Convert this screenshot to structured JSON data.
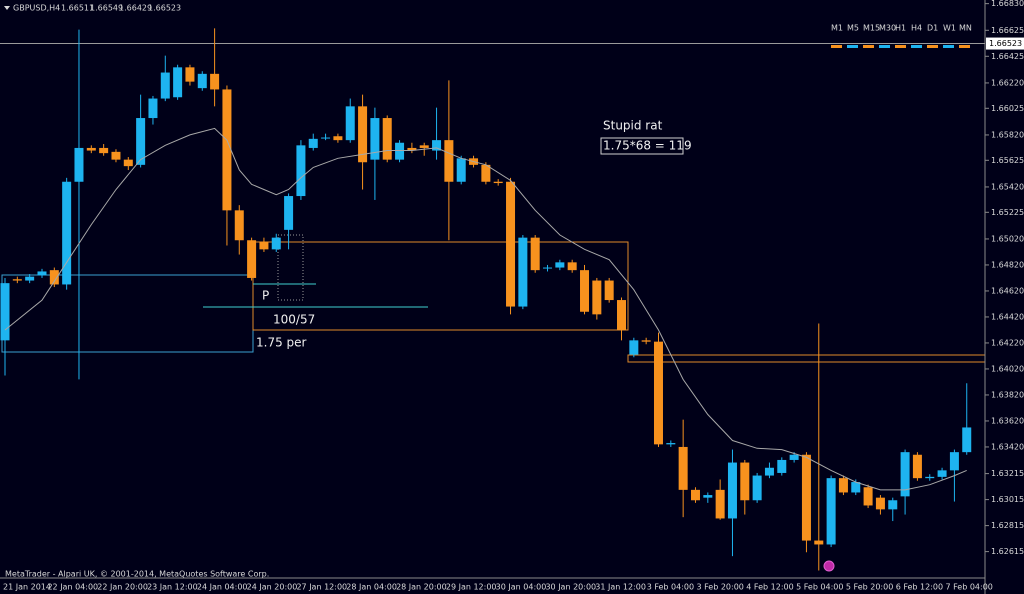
{
  "chart_data": {
    "type": "candlestick",
    "header": {
      "symbol": "GBPUSD,H4",
      "values": [
        1.66511,
        1.66549,
        1.66429,
        1.66523
      ]
    },
    "timeframes": [
      "M1",
      "M5",
      "M15",
      "M30",
      "H1",
      "H4",
      "D1",
      "W1",
      "MN"
    ],
    "footer": "MetaTrader - Alpari UK, © 2001-2014, MetaQuotes Software Corp.",
    "annotations": [
      "Stupid rat",
      "1.75*68 = 119",
      "P",
      "100/57",
      "1.75 per"
    ],
    "current_price": 1.66523,
    "ylim": [
      1.62412,
      1.66858
    ],
    "yticks": [
      {
        "value": 1.6683,
        "label": "1.66830"
      },
      1.66625,
      1.66425,
      {
        "value": 1.6622,
        "label": "1.66220"
      },
      1.66025,
      {
        "value": 1.6582,
        "label": "1.65820"
      },
      1.65625,
      {
        "value": 1.6542,
        "label": "1.65420"
      },
      1.65225,
      {
        "value": 1.6502,
        "label": "1.65020"
      },
      {
        "value": 1.6482,
        "label": "1.64820"
      },
      {
        "value": 1.6462,
        "label": "1.64620"
      },
      {
        "value": 1.6442,
        "label": "1.64420"
      },
      {
        "value": 1.6422,
        "label": "1.64220"
      },
      {
        "value": 1.6402,
        "label": "1.64020"
      },
      {
        "value": 1.6382,
        "label": "1.63820"
      },
      {
        "value": 1.6362,
        "label": "1.63620"
      },
      {
        "value": 1.6342,
        "label": "1.63420"
      },
      1.63215,
      1.63015,
      1.62815,
      1.62615
    ],
    "x_labels": [
      "21 Jan 2014",
      "22 Jan 04:00",
      "22 Jan 20:00",
      "23 Jan 12:00",
      "24 Jan 04:00",
      "24 Jan 20:00",
      "27 Jan 12:00",
      "28 Jan 04:00",
      "28 Jan 20:00",
      "29 Jan 12:00",
      "30 Jan 04:00",
      "30 Jan 20:00",
      "31 Jan 12:00",
      "3 Feb 04:00",
      "3 Feb 20:00",
      "4 Feb 12:00",
      "5 Feb 04:00",
      "5 Feb 20:00",
      "6 Feb 12:00",
      "7 Feb 04:00"
    ],
    "bull_color": "#1eb4f0",
    "bear_color": "#f7921e",
    "open": [
      1.6424,
      1.6471,
      1.647,
      1.6474,
      1.6478,
      1.6467,
      1.6546,
      1.6572,
      1.6572,
      1.6569,
      1.6563,
      1.6559,
      1.6595,
      1.661,
      1.6611,
      1.6634,
      1.6618,
      1.6629,
      1.6617,
      1.6524,
      1.6501,
      1.65,
      1.6494,
      1.6509,
      1.6535,
      1.6572,
      1.658,
      1.6581,
      1.6578,
      1.6604,
      1.6563,
      1.6595,
      1.6563,
      1.6572,
      1.6574,
      1.657,
      1.6578,
      1.6546,
      1.6564,
      1.6559,
      1.6546,
      1.6546,
      1.645,
      1.6503,
      1.648,
      1.648,
      1.6484,
      1.6478,
      1.647,
      1.647,
      1.6455,
      1.6413,
      1.6424,
      1.6423,
      1.6344,
      1.6342,
      1.6309,
      1.6303,
      1.6309,
      1.6287,
      1.633,
      1.6301,
      1.632,
      1.6322,
      1.6332,
      1.6336,
      1.627,
      1.6267,
      1.6318,
      1.6307,
      1.6311,
      1.6303,
      1.6294,
      1.6304,
      1.6336,
      1.6318,
      1.6319,
      1.6324,
      1.6338
    ],
    "high": [
      1.6472,
      1.6473,
      1.6475,
      1.6479,
      1.648,
      1.6549,
      1.6663,
      1.6574,
      1.6575,
      1.6571,
      1.6565,
      1.6613,
      1.6612,
      1.6643,
      1.6636,
      1.6636,
      1.6631,
      1.6664,
      1.662,
      1.6528,
      1.6503,
      1.6503,
      1.6506,
      1.6537,
      1.6578,
      1.6583,
      1.6583,
      1.6583,
      1.661,
      1.6613,
      1.6603,
      1.6597,
      1.6578,
      1.6576,
      1.6576,
      1.6603,
      1.6624,
      1.6566,
      1.6566,
      1.6561,
      1.6548,
      1.6549,
      1.6505,
      1.6505,
      1.6482,
      1.6486,
      1.6486,
      1.6482,
      1.6472,
      1.6472,
      1.6457,
      1.6426,
      1.6426,
      1.643,
      1.6347,
      1.6363,
      1.6311,
      1.6307,
      1.6317,
      1.634,
      1.6332,
      1.6322,
      1.633,
      1.6334,
      1.6338,
      1.6338,
      1.6437,
      1.632,
      1.632,
      1.6317,
      1.6313,
      1.6305,
      1.6303,
      1.634,
      1.6338,
      1.6321,
      1.6326,
      1.634,
      1.6391
    ],
    "low": [
      1.6397,
      1.6468,
      1.6468,
      1.6472,
      1.6465,
      1.6463,
      1.6394,
      1.6568,
      1.6566,
      1.6561,
      1.6555,
      1.6557,
      1.659,
      1.6608,
      1.6609,
      1.662,
      1.6616,
      1.6604,
      1.6497,
      1.649,
      1.647,
      1.6492,
      1.6492,
      1.6494,
      1.6532,
      1.657,
      1.6578,
      1.6576,
      1.6576,
      1.654,
      1.6532,
      1.6561,
      1.6561,
      1.6568,
      1.6566,
      1.6563,
      1.6501,
      1.6544,
      1.6557,
      1.6544,
      1.6543,
      1.6444,
      1.6448,
      1.6476,
      1.6477,
      1.6478,
      1.6476,
      1.6444,
      1.644,
      1.6453,
      1.6424,
      1.6411,
      1.6421,
      1.6342,
      1.6342,
      1.6288,
      1.6299,
      1.6299,
      1.6286,
      1.6258,
      1.629,
      1.6299,
      1.6318,
      1.632,
      1.633,
      1.6261,
      1.6247,
      1.6265,
      1.6305,
      1.6305,
      1.6295,
      1.629,
      1.6285,
      1.629,
      1.6316,
      1.6316,
      1.6317,
      1.63,
      1.6336
    ],
    "close": [
      1.6468,
      1.647,
      1.6473,
      1.6477,
      1.6467,
      1.6546,
      1.6572,
      1.657,
      1.6568,
      1.6563,
      1.6558,
      1.6595,
      1.661,
      1.663,
      1.6634,
      1.6623,
      1.6629,
      1.6617,
      1.6524,
      1.6501,
      1.6472,
      1.6494,
      1.6503,
      1.6535,
      1.6574,
      1.6579,
      1.658,
      1.6578,
      1.6604,
      1.6561,
      1.6595,
      1.6563,
      1.6576,
      1.657,
      1.6572,
      1.6578,
      1.6546,
      1.6564,
      1.6559,
      1.6546,
      1.6545,
      1.645,
      1.6503,
      1.6478,
      1.648,
      1.6484,
      1.6478,
      1.6446,
      1.6444,
      1.6455,
      1.6432,
      1.6424,
      1.6423,
      1.6344,
      1.6345,
      1.6309,
      1.6301,
      1.6305,
      1.6287,
      1.633,
      1.6301,
      1.632,
      1.6326,
      1.6332,
      1.6336,
      1.627,
      1.6267,
      1.6318,
      1.6307,
      1.6315,
      1.6297,
      1.6294,
      1.6301,
      1.6338,
      1.6318,
      1.6319,
      1.6324,
      1.6338,
      1.6357
    ],
    "moving_average": {
      "color": "#a8a8a8",
      "x": [
        0,
        3,
        5,
        7,
        9,
        11,
        13,
        15,
        17,
        18,
        19,
        20,
        21,
        22,
        23,
        24,
        25,
        27,
        29,
        31,
        33,
        35,
        37,
        39,
        41,
        43,
        45,
        47,
        49,
        51,
        53,
        55,
        57,
        59,
        61,
        63,
        65,
        67,
        69,
        71,
        73,
        75,
        77,
        78
      ],
      "values": [
        1.6432,
        1.6455,
        1.6484,
        1.6513,
        1.654,
        1.6563,
        1.6574,
        1.6582,
        1.6587,
        1.6578,
        1.6555,
        1.6544,
        1.654,
        1.6536,
        1.654,
        1.6549,
        1.6557,
        1.6564,
        1.6567,
        1.657,
        1.657,
        1.6572,
        1.6564,
        1.6559,
        1.6547,
        1.6524,
        1.6505,
        1.6494,
        1.6486,
        1.6463,
        1.6432,
        1.6394,
        1.6367,
        1.6347,
        1.6341,
        1.634,
        1.6334,
        1.6324,
        1.6315,
        1.6309,
        1.6309,
        1.6313,
        1.632,
        1.6324
      ]
    }
  }
}
